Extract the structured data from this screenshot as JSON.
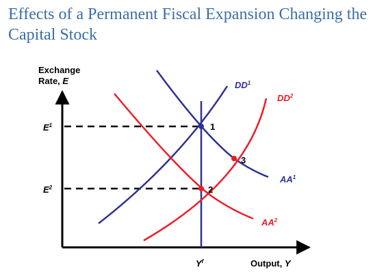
{
  "title": "Effects of a Permanent Fiscal Expansion Changing the Capital Stock",
  "axes": {
    "y_label_line1": "Exchange",
    "y_label_line2_prefix": "Rate, ",
    "y_label_line2_var": "E",
    "x_label_prefix": "Output, ",
    "x_label_var": "Y"
  },
  "ticks": {
    "e1_base": "E",
    "e1_sup": "1",
    "e2_base": "E",
    "e2_sup": "2",
    "yf_base": "Y",
    "yf_sup": "f"
  },
  "curves": {
    "dd1_base": "DD",
    "dd1_sup": "1",
    "dd2_base": "DD",
    "dd2_sup": "2",
    "aa1_base": "AA",
    "aa1_sup": "1",
    "aa2_base": "AA",
    "aa2_sup": "2"
  },
  "points": {
    "p1": "1",
    "p2": "2",
    "p3": "3"
  },
  "colors": {
    "title": "#3a6ea5",
    "blue": "#2e3192",
    "red": "#ee1c25",
    "axis": "#000000"
  }
}
